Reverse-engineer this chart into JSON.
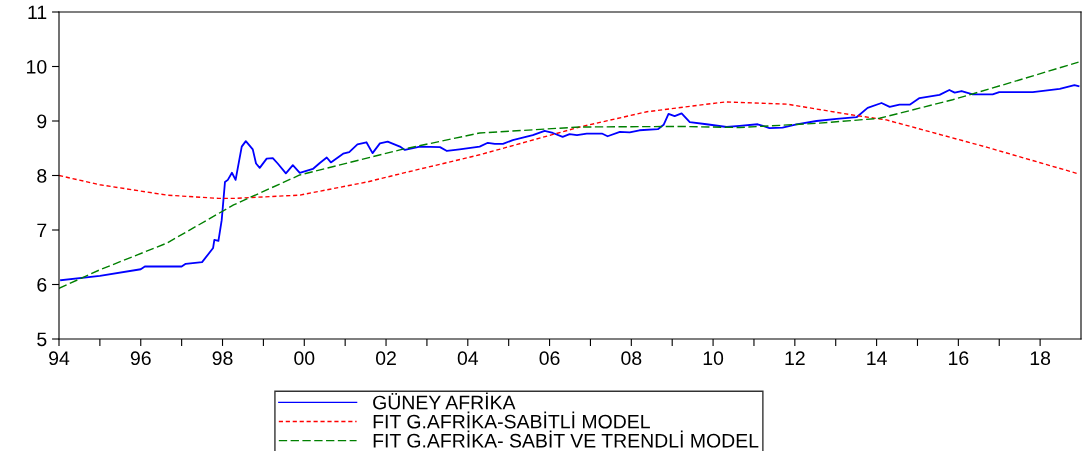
{
  "chart_data": {
    "type": "line",
    "xlim": [
      1994,
      2019
    ],
    "ylim": [
      5,
      11
    ],
    "yticks": [
      5,
      6,
      7,
      8,
      9,
      10,
      11
    ],
    "xticks": [
      {
        "value": 1994,
        "label": "94"
      },
      {
        "value": 1995,
        "label": null
      },
      {
        "value": 1996,
        "label": "96"
      },
      {
        "value": 1997,
        "label": null
      },
      {
        "value": 1998,
        "label": "98"
      },
      {
        "value": 1999,
        "label": null
      },
      {
        "value": 2000,
        "label": "00"
      },
      {
        "value": 2001,
        "label": null
      },
      {
        "value": 2002,
        "label": "02"
      },
      {
        "value": 2003,
        "label": null
      },
      {
        "value": 2004,
        "label": "04"
      },
      {
        "value": 2005,
        "label": null
      },
      {
        "value": 2006,
        "label": "06"
      },
      {
        "value": 2007,
        "label": null
      },
      {
        "value": 2008,
        "label": "08"
      },
      {
        "value": 2009,
        "label": null
      },
      {
        "value": 2010,
        "label": "10"
      },
      {
        "value": 2011,
        "label": null
      },
      {
        "value": 2012,
        "label": "12"
      },
      {
        "value": 2013,
        "label": null
      },
      {
        "value": 2014,
        "label": "14"
      },
      {
        "value": 2015,
        "label": null
      },
      {
        "value": 2016,
        "label": "16"
      },
      {
        "value": 2017,
        "label": null
      },
      {
        "value": 2018,
        "label": "18"
      }
    ],
    "grid": false,
    "legend": "bottom",
    "marker": "none",
    "series": [
      {
        "name": "GÜNEY AFRİKA",
        "color": "#0000ff",
        "line_style": "solid",
        "x": [
          1994.05,
          1995.0,
          1996.0,
          1996.1,
          1997.0,
          1997.1,
          1997.5,
          1997.77,
          1997.8,
          1997.9,
          1997.98,
          1998.06,
          1998.13,
          1998.23,
          1998.32,
          1998.47,
          1998.57,
          1998.74,
          1998.82,
          1998.91,
          1999.08,
          1999.23,
          1999.35,
          1999.55,
          1999.72,
          1999.89,
          2000.21,
          2000.38,
          2000.55,
          2000.65,
          2000.95,
          2001.1,
          2001.3,
          2001.52,
          2001.67,
          2001.85,
          2002.04,
          2002.34,
          2002.46,
          2002.83,
          2003.32,
          2003.49,
          2003.8,
          2004.29,
          2004.49,
          2004.66,
          2004.86,
          2005.1,
          2005.59,
          2005.88,
          2006.08,
          2006.32,
          2006.49,
          2006.67,
          2006.91,
          2007.28,
          2007.42,
          2007.72,
          2007.96,
          2008.2,
          2008.65,
          2008.79,
          2008.91,
          2009.06,
          2009.23,
          2009.43,
          2009.84,
          2010.33,
          2010.65,
          2011.09,
          2011.38,
          2011.7,
          2012.04,
          2012.53,
          2013.02,
          2013.51,
          2013.78,
          2014.12,
          2014.32,
          2014.56,
          2014.81,
          2015.05,
          2015.54,
          2015.78,
          2015.91,
          2016.08,
          2016.35,
          2016.84,
          2017.0,
          2017.82,
          2018.48,
          2018.84,
          2018.94
        ],
        "values": [
          6.08,
          6.16,
          6.28,
          6.33,
          6.33,
          6.38,
          6.41,
          6.67,
          6.82,
          6.8,
          7.18,
          7.88,
          7.92,
          8.05,
          7.92,
          8.53,
          8.63,
          8.48,
          8.22,
          8.14,
          8.31,
          8.32,
          8.22,
          8.04,
          8.19,
          8.05,
          8.12,
          8.23,
          8.33,
          8.24,
          8.4,
          8.43,
          8.57,
          8.61,
          8.41,
          8.59,
          8.62,
          8.53,
          8.47,
          8.53,
          8.52,
          8.45,
          8.48,
          8.53,
          8.6,
          8.58,
          8.58,
          8.65,
          8.74,
          8.82,
          8.78,
          8.71,
          8.76,
          8.74,
          8.77,
          8.77,
          8.72,
          8.8,
          8.79,
          8.83,
          8.85,
          8.93,
          9.13,
          9.09,
          9.14,
          8.98,
          8.94,
          8.89,
          8.91,
          8.94,
          8.87,
          8.88,
          8.94,
          9.0,
          9.04,
          9.07,
          9.24,
          9.33,
          9.26,
          9.3,
          9.3,
          9.42,
          9.48,
          9.57,
          9.52,
          9.55,
          9.49,
          9.49,
          9.53,
          9.53,
          9.59,
          9.66,
          9.64
        ]
      },
      {
        "name": "FIT G.AFRİKA-SABİTLİ MODEL",
        "color": "#ff0000",
        "line_style": "dashed",
        "x": [
          1994.0,
          1995.0,
          1996.64,
          1997.9,
          1998.27,
          1999.89,
          2001.53,
          2002.34,
          2004.29,
          2006.74,
          2008.38,
          2010.3,
          2011.8,
          2013.5,
          2014.24,
          2016.69,
          2018.94
        ],
        "values": [
          8.0,
          7.83,
          7.64,
          7.58,
          7.58,
          7.64,
          7.88,
          8.03,
          8.38,
          8.89,
          9.17,
          9.35,
          9.31,
          9.1,
          9.02,
          8.52,
          8.03
        ]
      },
      {
        "name": "FIT G.AFRİKA- SABİT VE TRENDLİ MODEL",
        "color": "#008000",
        "line_style": "dashed",
        "x": [
          1994.0,
          1995.0,
          1996.64,
          1998.27,
          1999.89,
          2002.34,
          2004.29,
          2006.74,
          2009.18,
          2010.65,
          2012.6,
          2014.07,
          2015.86,
          2017.08,
          2018.94
        ],
        "values": [
          5.93,
          6.27,
          6.76,
          7.46,
          8.01,
          8.47,
          8.78,
          8.89,
          8.9,
          8.88,
          8.96,
          9.05,
          9.39,
          9.66,
          10.08
        ]
      }
    ]
  }
}
